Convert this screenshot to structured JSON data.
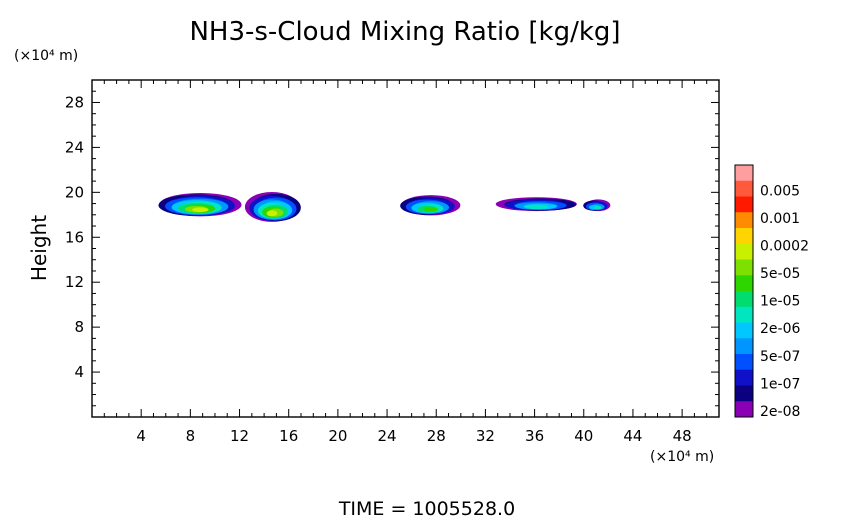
{
  "title": "NH3-s-Cloud Mixing Ratio [kg/kg]",
  "footer": "TIME  =  1005528.0",
  "chart_data": {
    "type": "heatmap",
    "title": "NH3-s-Cloud Mixing Ratio [kg/kg]",
    "xlabel": "",
    "ylabel": "Height",
    "x_unit": "(×10⁴ m)",
    "y_unit": "(×10⁴ m)",
    "xlim": [
      0,
      51
    ],
    "ylim": [
      0,
      30
    ],
    "xticks": [
      4,
      8,
      12,
      16,
      20,
      24,
      28,
      32,
      36,
      40,
      44,
      48
    ],
    "yticks": [
      4,
      8,
      12,
      16,
      20,
      24,
      28
    ],
    "colorbar": {
      "labels": [
        "0.005",
        "0.001",
        "0.0002",
        "5e-05",
        "1e-05",
        "2e-06",
        "5e-07",
        "1e-07",
        "2e-08"
      ],
      "colors": [
        "#ff9e9e",
        "#ff5a3c",
        "#ff1a00",
        "#ff8c00",
        "#ffd400",
        "#c8f000",
        "#7ee000",
        "#2ed600",
        "#00dc6e",
        "#00e6be",
        "#00c8ff",
        "#0096ff",
        "#0050ff",
        "#1010c8",
        "#0a0080",
        "#8a00b4"
      ]
    },
    "grid": false,
    "cloud_blobs": [
      {
        "x": [
          5.3,
          12.0
        ],
        "y": [
          17.8,
          20.0
        ],
        "level": "1e-05"
      },
      {
        "x": [
          12.6,
          17.0
        ],
        "y": [
          17.3,
          20.1
        ],
        "level": "1e-05"
      },
      {
        "x": [
          25.0,
          29.8
        ],
        "y": [
          17.9,
          19.8
        ],
        "level": "5e-06"
      },
      {
        "x": [
          33.0,
          39.6
        ],
        "y": [
          18.3,
          19.6
        ],
        "level": "2e-06"
      },
      {
        "x": [
          40.0,
          42.0
        ],
        "y": [
          18.3,
          19.4
        ],
        "level": "2e-06"
      }
    ]
  }
}
